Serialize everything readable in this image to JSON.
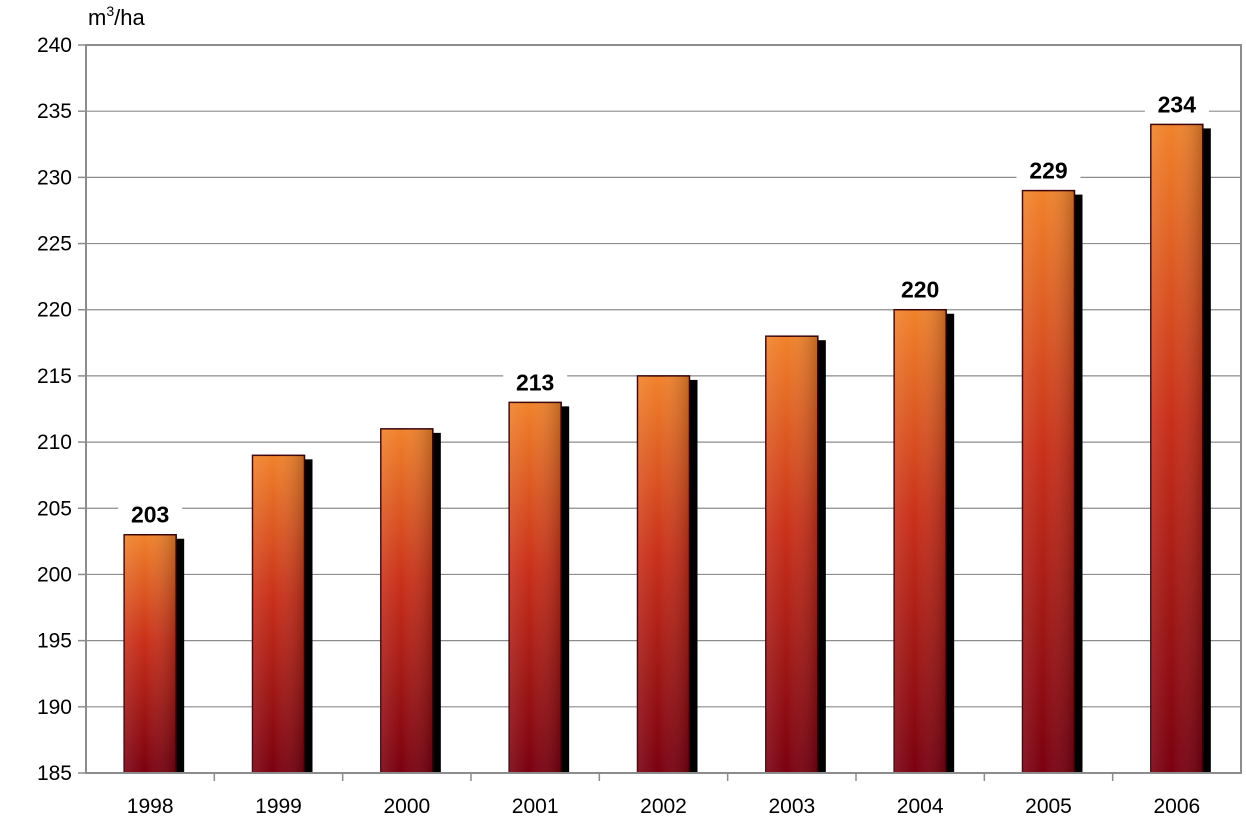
{
  "chart_data": {
    "type": "bar",
    "ylabel_unit": "m",
    "ylabel_unit_exp": "3",
    "ylabel_unit_rest": "/ha",
    "categories": [
      "1998",
      "1999",
      "2000",
      "2001",
      "2002",
      "2003",
      "2004",
      "2005",
      "2006"
    ],
    "values": [
      203,
      209,
      211,
      213,
      215,
      218,
      220,
      229,
      234
    ],
    "data_labels": [
      "203",
      "",
      "",
      "213",
      "",
      "",
      "220",
      "229",
      "234"
    ],
    "ylim": [
      185,
      240
    ],
    "yticks": [
      185,
      190,
      195,
      200,
      205,
      210,
      215,
      220,
      225,
      230,
      235,
      240
    ],
    "grid": true,
    "legend": "none",
    "colors": {
      "bar_light": "#f0822a",
      "bar_mid": "#c9301a",
      "bar_dark": "#7a0010",
      "shadow": "#000000",
      "grid": "#8c8c8c",
      "frame": "#8c8c8c"
    }
  }
}
